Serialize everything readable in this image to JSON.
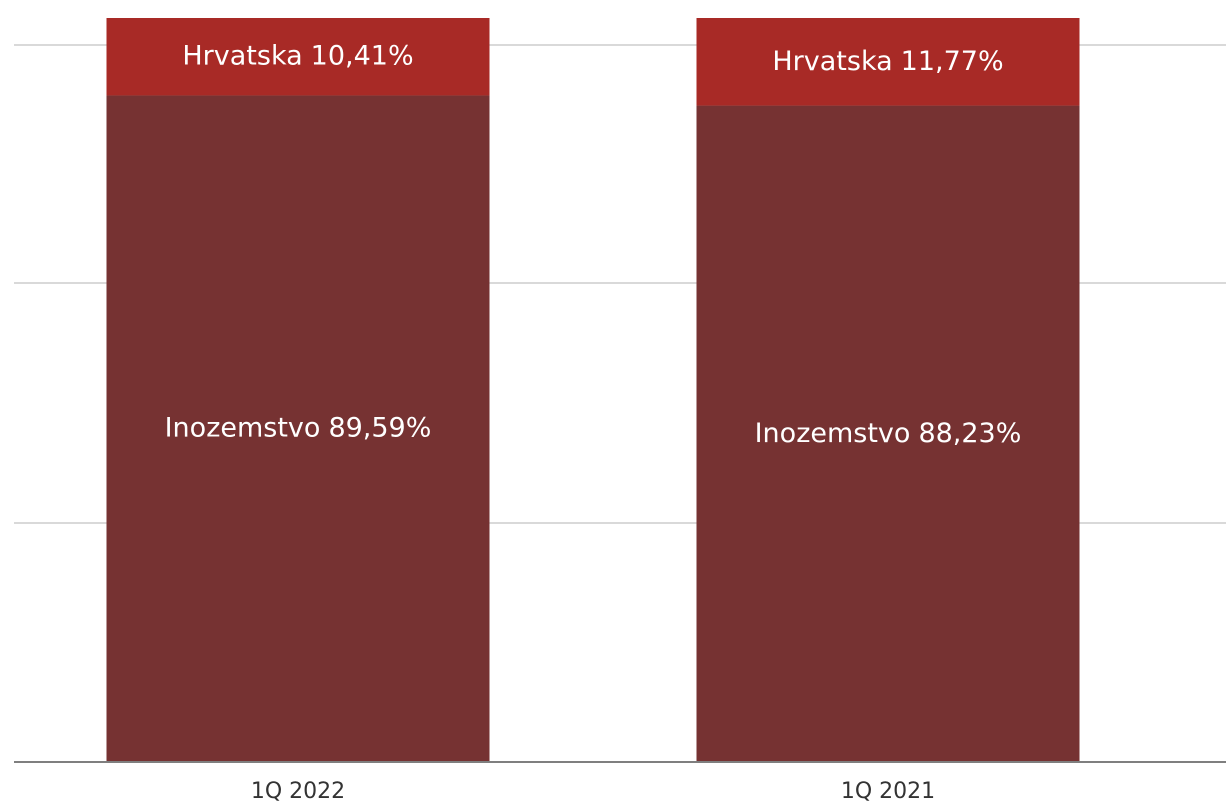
{
  "chart_data": {
    "type": "stacked_bar",
    "categories": [
      "1Q 2022",
      "1Q 2021"
    ],
    "series": [
      {
        "name": "Inozemstvo",
        "color": "#763232",
        "values": [
          89.59,
          88.23
        ],
        "value_labels": [
          "89,59%",
          "88,23%"
        ]
      },
      {
        "name": "Hrvatska",
        "color": "#a82a26",
        "values": [
          10.41,
          11.77
        ],
        "value_labels": [
          "10,41%",
          "11,77%"
        ]
      }
    ],
    "ylim": [
      0,
      100
    ]
  }
}
